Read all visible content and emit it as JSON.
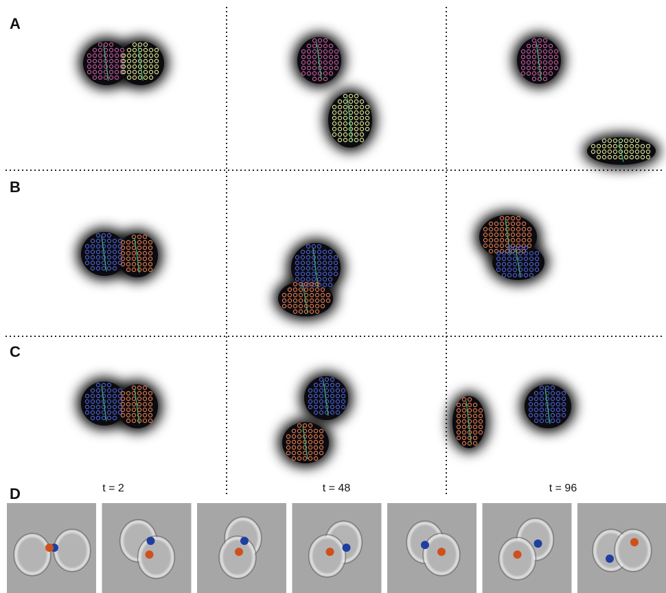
{
  "panels": [
    {
      "label": "A"
    },
    {
      "label": "B"
    },
    {
      "label": "C"
    },
    {
      "label": "D"
    }
  ],
  "time_labels": [
    "t = 2",
    "t = 48",
    "t = 96"
  ]
}
